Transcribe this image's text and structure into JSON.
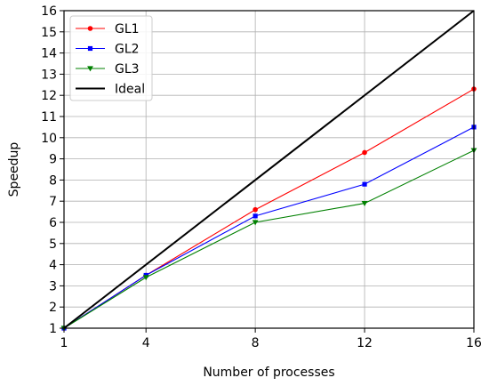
{
  "chart_data": {
    "type": "line",
    "xlabel": "Number of processes",
    "ylabel": "Speedup",
    "xlim": [
      1,
      16
    ],
    "ylim": [
      1,
      16
    ],
    "xticks": [
      1,
      4,
      8,
      12,
      16
    ],
    "yticks": [
      1,
      2,
      3,
      4,
      5,
      6,
      7,
      8,
      9,
      10,
      11,
      12,
      13,
      14,
      15,
      16
    ],
    "grid": true,
    "legend_position": "top-left",
    "series": [
      {
        "name": "GL1",
        "color": "#ff0000",
        "marker": "circle",
        "x": [
          1,
          4,
          8,
          12,
          16
        ],
        "y": [
          1,
          3.5,
          6.6,
          9.3,
          12.3
        ]
      },
      {
        "name": "GL2",
        "color": "#0000ff",
        "marker": "square",
        "x": [
          1,
          4,
          8,
          12,
          16
        ],
        "y": [
          1,
          3.5,
          6.3,
          7.8,
          10.5
        ]
      },
      {
        "name": "GL3",
        "color": "#008000",
        "marker": "triangle-down",
        "x": [
          1,
          4,
          8,
          12,
          16
        ],
        "y": [
          1,
          3.4,
          6.0,
          6.9,
          9.4
        ]
      },
      {
        "name": "Ideal",
        "color": "#000000",
        "marker": "none",
        "x": [
          1,
          16
        ],
        "y": [
          1,
          16
        ]
      }
    ]
  }
}
